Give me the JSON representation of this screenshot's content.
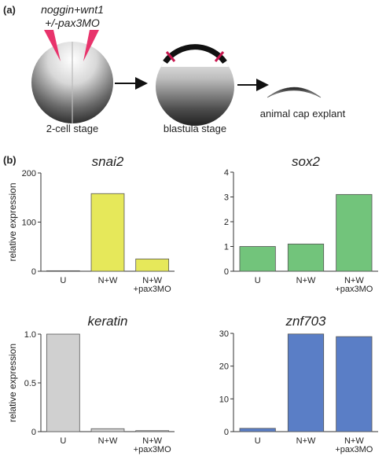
{
  "panel_a": {
    "label": "(a)",
    "injection_line1": "noggin+wnt1",
    "injection_line2": "+/-pax3MO",
    "stage1_label": "2-cell stage",
    "stage2_label": "blastula stage",
    "stage3_label": "animal cap explant",
    "colors": {
      "needle": "#e8336b",
      "cut_mark": "#c8174f"
    }
  },
  "panel_b": {
    "label": "(b)"
  },
  "chart_data": [
    {
      "type": "bar",
      "title": "snai2",
      "ylabel": "relative expression",
      "categories": [
        "U",
        "N+W",
        "N+W\n+pax3MO"
      ],
      "values": [
        1,
        158,
        25
      ],
      "ylim": [
        0,
        200
      ],
      "yticks": [
        0,
        100,
        200
      ],
      "color": "#e6e85a"
    },
    {
      "type": "bar",
      "title": "sox2",
      "ylabel": "",
      "categories": [
        "U",
        "N+W",
        "N+W\n+pax3MO"
      ],
      "values": [
        1.0,
        1.1,
        3.1
      ],
      "ylim": [
        0,
        4
      ],
      "yticks": [
        0,
        1,
        2,
        3,
        4
      ],
      "color": "#72c47b"
    },
    {
      "type": "bar",
      "title": "keratin",
      "ylabel": "relative expression",
      "categories": [
        "U",
        "N+W",
        "N+W\n+pax3MO"
      ],
      "values": [
        1.0,
        0.03,
        0.01
      ],
      "ylim": [
        0,
        1.0
      ],
      "yticks": [
        "0",
        "0.5",
        "1.0"
      ],
      "color": "#d0d0d0"
    },
    {
      "type": "bar",
      "title": "znf703",
      "ylabel": "",
      "categories": [
        "U",
        "N+W",
        "N+W\n+pax3MO"
      ],
      "values": [
        1,
        29.8,
        29
      ],
      "ylim": [
        0,
        30
      ],
      "yticks": [
        0,
        10,
        20,
        30
      ],
      "color": "#5a7ec6"
    }
  ]
}
